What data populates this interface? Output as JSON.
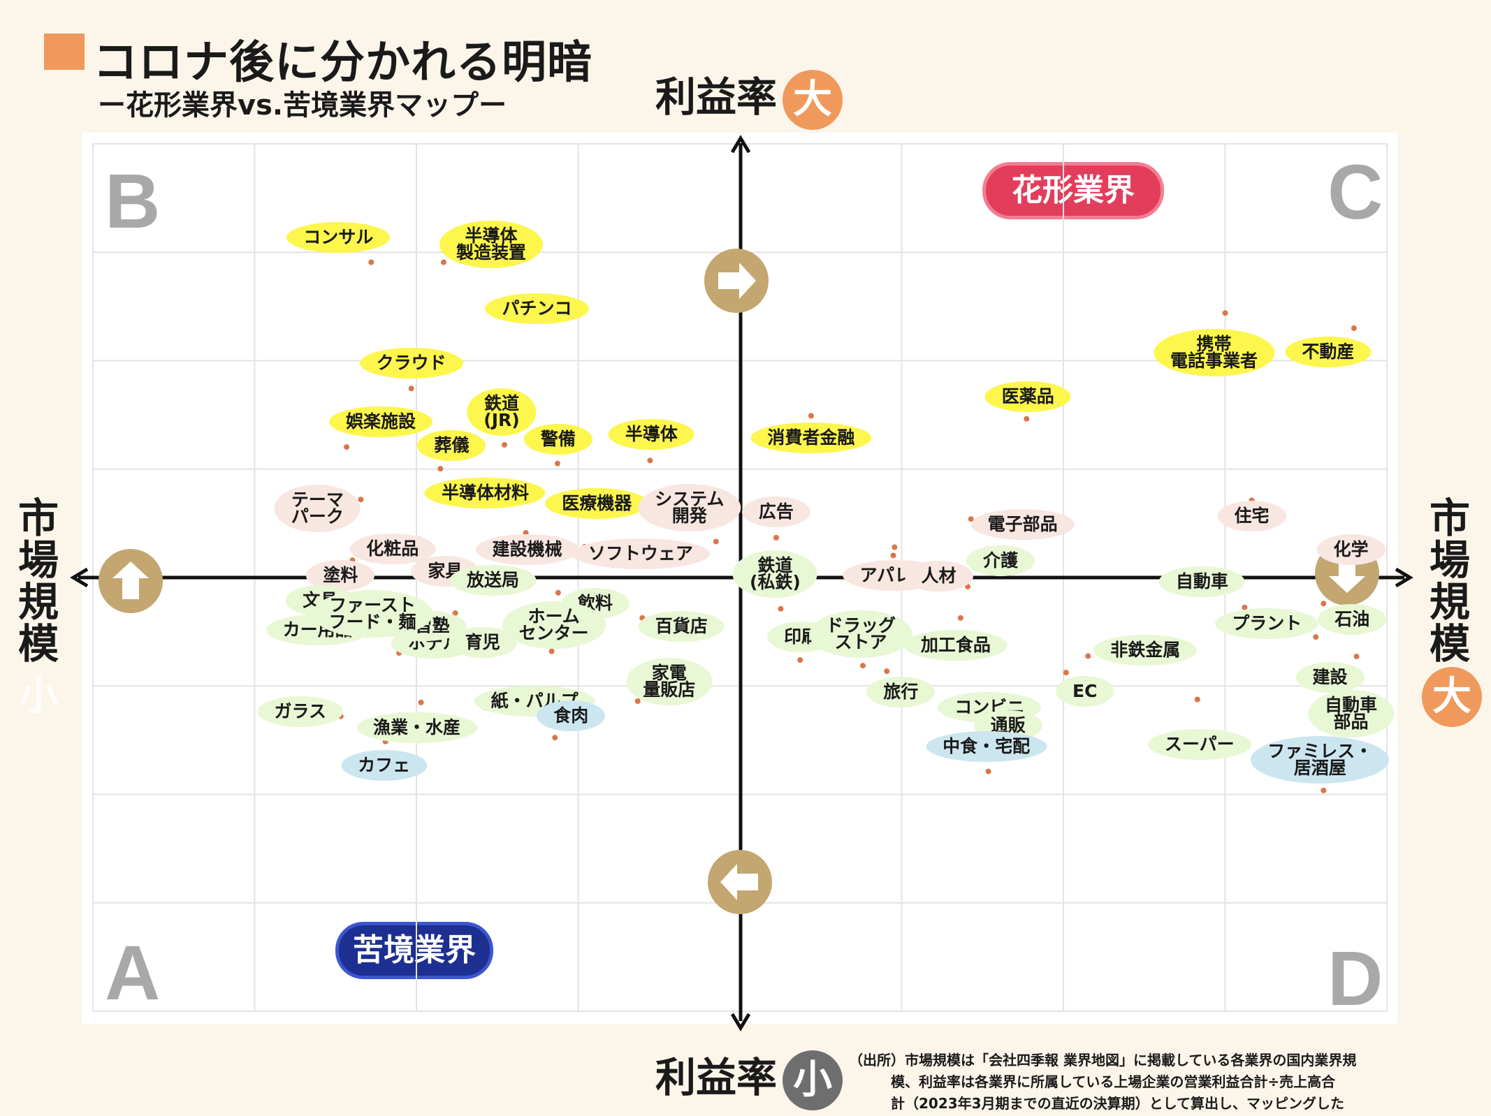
{
  "title": "コロナ後に分かれる明暗",
  "subtitle": "ー花形業界vs.苦境業界マップー",
  "colors": {
    "accent": "#ef9a5c",
    "star": "#e23e5c",
    "struggle": "#1d2f91",
    "yellow": "#fdf64d",
    "pink": "#f8e6e1",
    "green": "#e8f7d4",
    "blue": "#cce6f0",
    "arrow": "#c3a670",
    "gray_circle": "#6e6e6e"
  },
  "axes": {
    "top": {
      "text": "利益率",
      "circle": "大"
    },
    "bottom": {
      "text": "利益率",
      "circle": "小"
    },
    "left": {
      "text": "市場規模",
      "circle": "小"
    },
    "right": {
      "text": "市場規模",
      "circle": "大"
    }
  },
  "quadrants": {
    "tl": "B",
    "tr": "C",
    "bl": "A",
    "br": "D"
  },
  "badges": {
    "star": "花形業界",
    "struggle": "苦境業界"
  },
  "source": "（出所）市場規模は「会社四季報 業界地図」に掲載している各業界の国内業界規\n　　　模、利益率は各業界に所属している上場企業の営業利益合計÷売上高合\n　　　計（2023年3月期までの直近の決算期）として算出し、マッピングした",
  "chart_data": {
    "type": "scatter",
    "title": "コロナ後に分かれる明暗",
    "subtitle": "ー花形業界vs.苦境業界マップー",
    "xlabel": "市場規模",
    "ylabel": "利益率",
    "xlim": [
      -1,
      1
    ],
    "ylim": [
      -1,
      1
    ],
    "grid": true,
    "points": [
      {
        "label": "コンサル",
        "cat": "yellow",
        "x": -0.571,
        "y": 0.727
      },
      {
        "label": "半導体\n製造装置",
        "cat": "yellow",
        "x": -0.459,
        "y": 0.727
      },
      {
        "label": "パチンコ",
        "cat": "yellow",
        "x": -0.385,
        "y": 0.62
      },
      {
        "label": "クラウド",
        "cat": "yellow",
        "x": -0.509,
        "y": 0.436
      },
      {
        "label": "鉄道\n(JR)",
        "cat": "yellow",
        "x": -0.365,
        "y": 0.306
      },
      {
        "label": "娯楽施設",
        "cat": "yellow",
        "x": -0.609,
        "y": 0.301
      },
      {
        "label": "葬儀",
        "cat": "yellow",
        "x": -0.464,
        "y": 0.251
      },
      {
        "label": "警備",
        "cat": "yellow",
        "x": -0.283,
        "y": 0.263
      },
      {
        "label": "半導体",
        "cat": "yellow",
        "x": -0.14,
        "y": 0.27
      },
      {
        "label": "半導体材料",
        "cat": "yellow",
        "x": -0.466,
        "y": 0.178
      },
      {
        "label": "医療機器",
        "cat": "yellow",
        "x": -0.288,
        "y": 0.17
      },
      {
        "label": "消費者金融",
        "cat": "yellow",
        "x": 0.109,
        "y": 0.373
      },
      {
        "label": "医薬品",
        "cat": "yellow",
        "x": 0.442,
        "y": 0.366
      },
      {
        "label": "携帯\n電話事業者",
        "cat": "yellow",
        "x": 0.749,
        "y": 0.61
      },
      {
        "label": "不動産",
        "cat": "yellow",
        "x": 0.948,
        "y": 0.575
      },
      {
        "label": "テーマ\nパーク",
        "cat": "pink",
        "x": -0.587,
        "y": 0.18
      },
      {
        "label": "化粧品",
        "cat": "pink",
        "x": -0.497,
        "y": 0.088
      },
      {
        "label": "塗料",
        "cat": "pink",
        "x": -0.6,
        "y": 0.04
      },
      {
        "label": "家具",
        "cat": "pink",
        "x": -0.452,
        "y": 0.032
      },
      {
        "label": "建設機械",
        "cat": "pink",
        "x": -0.332,
        "y": 0.103
      },
      {
        "label": "ソフトウェア",
        "cat": "pink",
        "x": -0.241,
        "y": 0.071
      },
      {
        "label": "システム\n開発",
        "cat": "pink",
        "x": -0.038,
        "y": 0.083
      },
      {
        "label": "広告",
        "cat": "pink",
        "x": 0.055,
        "y": 0.092
      },
      {
        "label": "アパレル",
        "cat": "pink",
        "x": 0.238,
        "y": 0.07
      },
      {
        "label": "人材",
        "cat": "pink",
        "x": 0.236,
        "y": 0.051
      },
      {
        "label": "電子部品",
        "cat": "pink",
        "x": 0.356,
        "y": 0.135
      },
      {
        "label": "住宅",
        "cat": "pink",
        "x": 0.79,
        "y": 0.178
      },
      {
        "label": "化学",
        "cat": "pink",
        "x": 0.952,
        "y": 0.075
      },
      {
        "label": "文具",
        "cat": "green",
        "x": -0.611,
        "y": -0.025
      },
      {
        "label": "ホテル",
        "cat": "green",
        "x": -0.53,
        "y": -0.07
      },
      {
        "label": "放送局",
        "cat": "green",
        "x": -0.439,
        "y": -0.005
      },
      {
        "label": "カー用品",
        "cat": "green",
        "x": -0.589,
        "y": -0.098
      },
      {
        "label": "学習塾",
        "cat": "green",
        "x": -0.556,
        "y": -0.066
      },
      {
        "label": "育児",
        "cat": "green",
        "x": -0.441,
        "y": -0.082
      },
      {
        "label": "飲料",
        "cat": "green",
        "x": -0.282,
        "y": -0.035
      },
      {
        "label": "百貨店",
        "cat": "green",
        "x": -0.152,
        "y": -0.093
      },
      {
        "label": "ファースト\nフード・麺",
        "cat": "green",
        "x": -0.528,
        "y": -0.174
      },
      {
        "label": "ホーム\nセンター",
        "cat": "green",
        "x": -0.292,
        "y": -0.17
      },
      {
        "label": "家電\n量販店",
        "cat": "green",
        "x": -0.159,
        "y": -0.285
      },
      {
        "label": "ガラス",
        "cat": "green",
        "x": -0.618,
        "y": -0.32
      },
      {
        "label": "漁業・水産",
        "cat": "green",
        "x": -0.494,
        "y": -0.288
      },
      {
        "label": "紙・パルプ",
        "cat": "green",
        "x": -0.394,
        "y": -0.3
      },
      {
        "label": "鉄道\n(私鉄)",
        "cat": "green",
        "x": 0.062,
        "y": -0.072
      },
      {
        "label": "印刷",
        "cat": "green",
        "x": 0.092,
        "y": -0.19
      },
      {
        "label": "ドラッグ\nストア",
        "cat": "green",
        "x": 0.189,
        "y": -0.203
      },
      {
        "label": "介護",
        "cat": "green",
        "x": 0.351,
        "y": -0.021
      },
      {
        "label": "加工食品",
        "cat": "green",
        "x": 0.34,
        "y": -0.093
      },
      {
        "label": "旅行",
        "cat": "green",
        "x": 0.226,
        "y": -0.216
      },
      {
        "label": "コンビニ",
        "cat": "green",
        "x": 0.347,
        "y": -0.311
      },
      {
        "label": "通販",
        "cat": "green",
        "x": 0.369,
        "y": -0.3
      },
      {
        "label": "非鉄金属",
        "cat": "green",
        "x": 0.537,
        "y": -0.181
      },
      {
        "label": "EC",
        "cat": "green",
        "x": 0.503,
        "y": -0.219
      },
      {
        "label": "スーパー",
        "cat": "green",
        "x": 0.706,
        "y": -0.281
      },
      {
        "label": "自動車",
        "cat": "green",
        "x": 0.779,
        "y": -0.069
      },
      {
        "label": "石油",
        "cat": "green",
        "x": 0.901,
        "y": -0.06
      },
      {
        "label": "プラント",
        "cat": "green",
        "x": 0.889,
        "y": -0.137
      },
      {
        "label": "建設",
        "cat": "green",
        "x": 0.952,
        "y": -0.182
      },
      {
        "label": "自動車\n部品",
        "cat": "green",
        "x": 0.952,
        "y": -0.232
      },
      {
        "label": "カフェ",
        "cat": "blue",
        "x": -0.549,
        "y": -0.378
      },
      {
        "label": "食肉",
        "cat": "blue",
        "x": -0.287,
        "y": -0.369
      },
      {
        "label": "中食・宅配",
        "cat": "blue",
        "x": 0.383,
        "y": -0.447
      },
      {
        "label": "ファミレス・\n居酒屋",
        "cat": "blue",
        "x": 0.901,
        "y": -0.491
      }
    ]
  }
}
